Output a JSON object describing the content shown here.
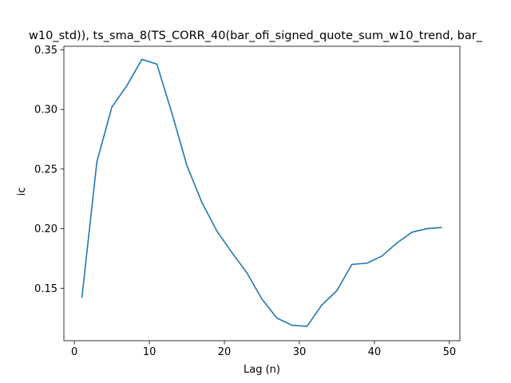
{
  "chart_data": {
    "type": "line",
    "title": "w10_std)), ts_sma_8(TS_CORR_40(bar_ofi_signed_quote_sum_w10_trend, bar_",
    "xlabel": "Lag (n)",
    "ylabel": "ic",
    "xlim": [
      -1.4,
      51.4
    ],
    "ylim": [
      0.106,
      0.353
    ],
    "xticks": [
      0,
      10,
      20,
      30,
      40,
      50
    ],
    "xtick_labels": [
      "0",
      "10",
      "20",
      "30",
      "40",
      "50"
    ],
    "yticks": [
      0.15,
      0.2,
      0.25,
      0.3,
      0.35
    ],
    "ytick_labels": [
      "0.15",
      "0.20",
      "0.25",
      "0.30",
      "0.35"
    ],
    "grid": false,
    "series": [
      {
        "color": "#1f77b4",
        "x": [
          1,
          3,
          5,
          7,
          9,
          11,
          13,
          15,
          17,
          19,
          21,
          23,
          25,
          27,
          29,
          31,
          33,
          35,
          37,
          39,
          41,
          43,
          45,
          47,
          49
        ],
        "y": [
          0.142,
          0.256,
          0.302,
          0.32,
          0.342,
          0.338,
          0.297,
          0.253,
          0.222,
          0.198,
          0.18,
          0.163,
          0.141,
          0.125,
          0.119,
          0.118,
          0.136,
          0.148,
          0.17,
          0.171,
          0.177,
          0.188,
          0.197,
          0.2,
          0.201
        ]
      }
    ]
  }
}
